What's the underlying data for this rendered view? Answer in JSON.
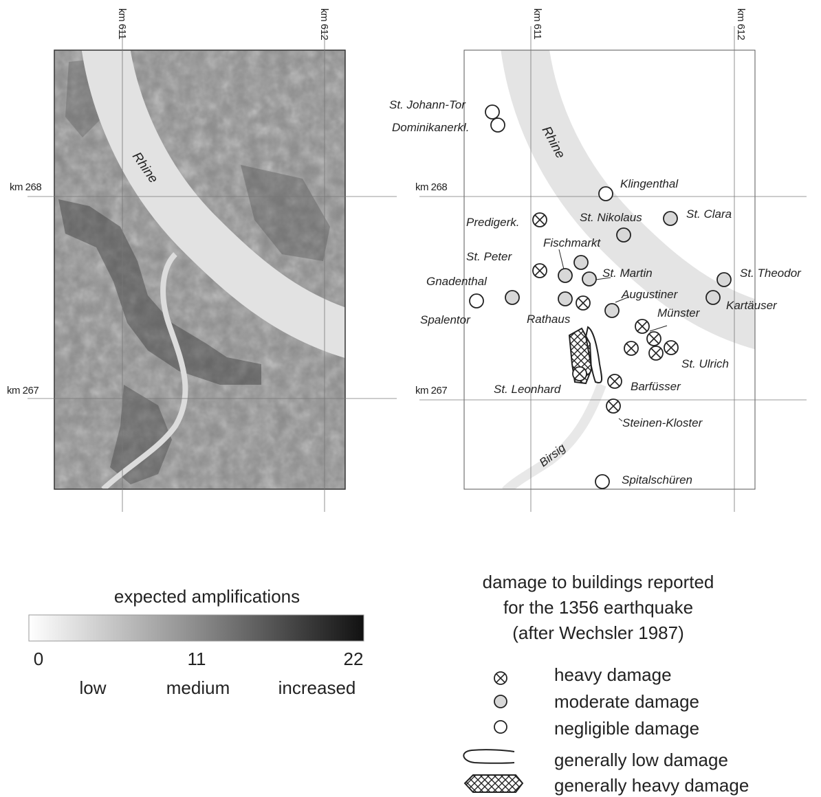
{
  "grid": {
    "left_map": {
      "top": [
        "km 611",
        "km 612"
      ],
      "side": [
        "km 268",
        "km 267"
      ]
    },
    "right_map": {
      "top": [
        "km 611",
        "km 612"
      ],
      "side": [
        "km 268",
        "km 267"
      ]
    }
  },
  "rivers": {
    "rhine_left": "Rhine",
    "rhine_right": "Rhine",
    "birsig": "Birsig"
  },
  "sites": [
    {
      "name": "St. Johann-Tor",
      "damage": "negligible"
    },
    {
      "name": "Dominikanerkl.",
      "damage": "negligible"
    },
    {
      "name": "Klingenthal",
      "damage": "negligible"
    },
    {
      "name": "Predigerk.",
      "damage": "heavy"
    },
    {
      "name": "St. Nikolaus",
      "damage": "moderate"
    },
    {
      "name": "St. Clara",
      "damage": "moderate"
    },
    {
      "name": "Fischmarkt",
      "damage": "moderate"
    },
    {
      "name": "St. Peter",
      "damage": "heavy"
    },
    {
      "name": "St. Martin",
      "damage": "moderate"
    },
    {
      "name": "St. Theodor",
      "damage": "moderate"
    },
    {
      "name": "Gnadenthal",
      "damage": "moderate"
    },
    {
      "name": "Augustiner",
      "damage": "moderate"
    },
    {
      "name": "Kartäuser",
      "damage": "moderate"
    },
    {
      "name": "Spalentor",
      "damage": "negligible"
    },
    {
      "name": "Rathaus",
      "damage": "heavy"
    },
    {
      "name": "Münster",
      "damage": "heavy"
    },
    {
      "name": "St. Ulrich",
      "damage": "heavy"
    },
    {
      "name": "St. Leonhard",
      "damage": "heavy"
    },
    {
      "name": "Barfüsser",
      "damage": "heavy"
    },
    {
      "name": "Steinen-Kloster",
      "damage": "heavy"
    },
    {
      "name": "Spitalschüren",
      "damage": "negligible"
    }
  ],
  "amplification_legend": {
    "title": "expected amplifications",
    "ticks": [
      "0",
      "11",
      "22"
    ],
    "levels": [
      "low",
      "medium",
      "increased"
    ],
    "min": 0,
    "max": 22
  },
  "damage_legend": {
    "title_lines": [
      "damage to buildings reported",
      "for the 1356 earthquake",
      "(after Wechsler 1987)"
    ],
    "items": [
      "heavy damage",
      "moderate damage",
      "negligible damage",
      "generally low damage",
      "generally heavy damage"
    ]
  },
  "colors": {
    "raster_dark": "#2e2e2e",
    "raster_mid": "#8a8a8a",
    "river": "#e4e4e4",
    "grid": "#777777"
  }
}
